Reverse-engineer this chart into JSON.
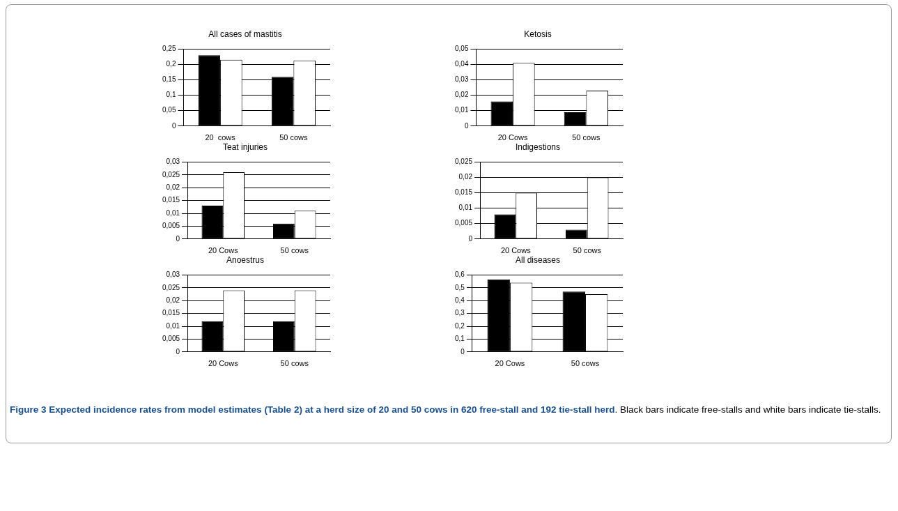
{
  "chart_data": [
    {
      "type": "bar",
      "title": "All cases of mastitis",
      "categories": [
        "20  cows",
        "50 cows"
      ],
      "series": [
        {
          "color": "#000000",
          "values": [
            0.23,
            0.16
          ]
        },
        {
          "color": "#ffffff",
          "values": [
            0.215,
            0.213
          ]
        }
      ],
      "ylim": [
        0,
        0.25
      ],
      "yticks": [
        {
          "value": 0,
          "label": "0"
        },
        {
          "value": 0.05,
          "label": "0,05"
        },
        {
          "value": 0.1,
          "label": "0,1"
        },
        {
          "value": 0.15,
          "label": "0,15"
        },
        {
          "value": 0.2,
          "label": "0,2"
        },
        {
          "value": 0.25,
          "label": "0,25"
        }
      ],
      "grid": "y",
      "legend": false
    },
    {
      "type": "bar",
      "title": "Ketosis",
      "categories": [
        "20 Cows",
        "50 cows"
      ],
      "series": [
        {
          "color": "#000000",
          "values": [
            0.016,
            0.009
          ]
        },
        {
          "color": "#ffffff",
          "values": [
            0.041,
            0.023
          ]
        }
      ],
      "ylim": [
        0,
        0.05
      ],
      "yticks": [
        {
          "value": 0,
          "label": "0"
        },
        {
          "value": 0.01,
          "label": "0,01"
        },
        {
          "value": 0.02,
          "label": "0,02"
        },
        {
          "value": 0.03,
          "label": "0,03"
        },
        {
          "value": 0.04,
          "label": "0,04"
        },
        {
          "value": 0.05,
          "label": "0,05"
        }
      ],
      "grid": "y",
      "legend": false
    },
    {
      "type": "bar",
      "title": "Teat injuries",
      "categories": [
        "20 Cows",
        "50 cows"
      ],
      "series": [
        {
          "color": "#000000",
          "values": [
            0.013,
            0.006
          ]
        },
        {
          "color": "#ffffff",
          "values": [
            0.026,
            0.011
          ]
        }
      ],
      "ylim": [
        0,
        0.03
      ],
      "yticks": [
        {
          "value": 0,
          "label": "0"
        },
        {
          "value": 0.005,
          "label": "0,005"
        },
        {
          "value": 0.01,
          "label": "0,01"
        },
        {
          "value": 0.015,
          "label": "0,015"
        },
        {
          "value": 0.02,
          "label": "0,02"
        },
        {
          "value": 0.025,
          "label": "0,025"
        },
        {
          "value": 0.03,
          "label": "0,03"
        }
      ],
      "grid": "y",
      "legend": false
    },
    {
      "type": "bar",
      "title": "Indigestions",
      "categories": [
        "20 Cows",
        "50 cows"
      ],
      "series": [
        {
          "color": "#000000",
          "values": [
            0.008,
            0.003
          ]
        },
        {
          "color": "#ffffff",
          "values": [
            0.015,
            0.02
          ]
        }
      ],
      "ylim": [
        0,
        0.025
      ],
      "yticks": [
        {
          "value": 0,
          "label": "0"
        },
        {
          "value": 0.005,
          "label": "0,005"
        },
        {
          "value": 0.01,
          "label": "0,01"
        },
        {
          "value": 0.015,
          "label": "0,015"
        },
        {
          "value": 0.02,
          "label": "0,02"
        },
        {
          "value": 0.025,
          "label": "0,025"
        }
      ],
      "grid": "y",
      "legend": false
    },
    {
      "type": "bar",
      "title": "Anoestrus",
      "categories": [
        "20 Cows",
        "50 cows"
      ],
      "series": [
        {
          "color": "#000000",
          "values": [
            0.012,
            0.012
          ]
        },
        {
          "color": "#ffffff",
          "values": [
            0.024,
            0.024
          ]
        }
      ],
      "ylim": [
        0,
        0.03
      ],
      "yticks": [
        {
          "value": 0,
          "label": "0"
        },
        {
          "value": 0.005,
          "label": "0,005"
        },
        {
          "value": 0.01,
          "label": "0,01"
        },
        {
          "value": 0.015,
          "label": "0,015"
        },
        {
          "value": 0.02,
          "label": "0,02"
        },
        {
          "value": 0.025,
          "label": "0,025"
        },
        {
          "value": 0.03,
          "label": "0,03"
        }
      ],
      "grid": "y",
      "legend": false
    },
    {
      "type": "bar",
      "title": "All diseases",
      "categories": [
        "20 Cows",
        "50 cows"
      ],
      "series": [
        {
          "color": "#000000",
          "values": [
            0.565,
            0.47
          ]
        },
        {
          "color": "#ffffff",
          "values": [
            0.54,
            0.45
          ]
        }
      ],
      "ylim": [
        0,
        0.6
      ],
      "yticks": [
        {
          "value": 0,
          "label": "0"
        },
        {
          "value": 0.1,
          "label": "0,1"
        },
        {
          "value": 0.2,
          "label": "0,2"
        },
        {
          "value": 0.3,
          "label": "0,3"
        },
        {
          "value": 0.4,
          "label": "0,4"
        },
        {
          "value": 0.5,
          "label": "0,5"
        },
        {
          "value": 0.6,
          "label": "0,6"
        }
      ],
      "grid": "y",
      "legend": false,
      "annotations": [
        "Figure 3 Expected incidence rates from model estimates (Table 2) at a herd size of 20 and 50 cows in 620 free-stall and 192 tie-stall herd",
        ". Black bars indicate free-stalls and white bars indicate tie-stalls."
      ]
    }
  ]
}
